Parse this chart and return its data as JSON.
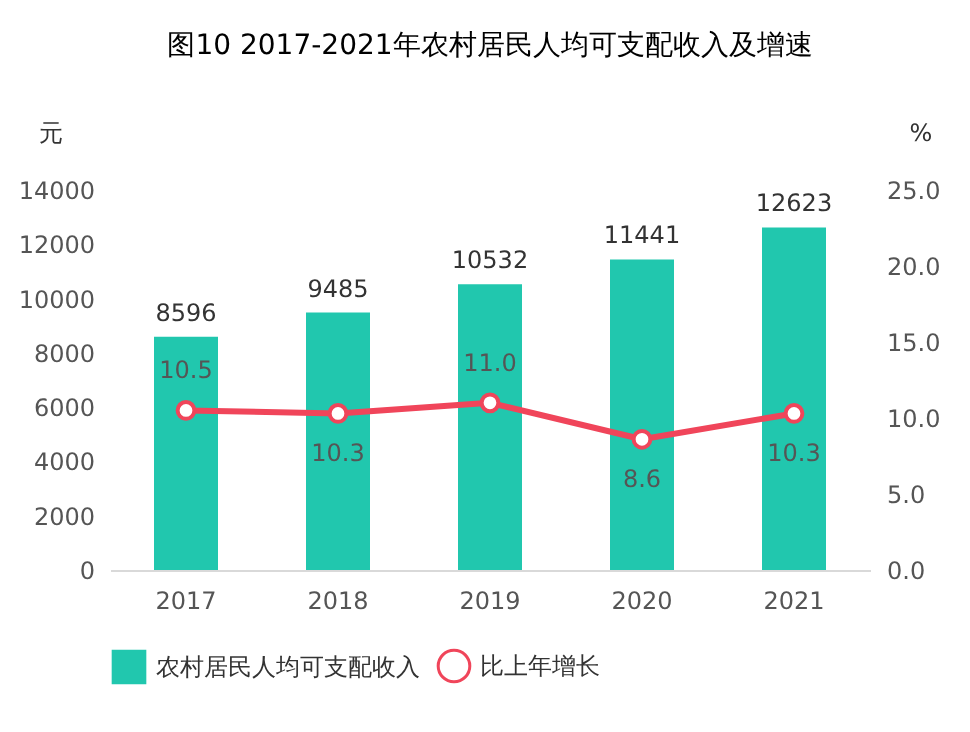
{
  "chart_data": {
    "type": "bar",
    "title": "图10   2017-2021年农村居民人均可支配收入及增速",
    "categories": [
      "2017",
      "2018",
      "2019",
      "2020",
      "2021"
    ],
    "ylabel": "元",
    "y2label": "%",
    "ylim": [
      0,
      14000
    ],
    "yticks": [
      0,
      2000,
      4000,
      6000,
      8000,
      10000,
      12000,
      14000
    ],
    "y2lim": [
      0,
      25
    ],
    "y2ticks": [
      {
        "value": 0,
        "label": "0.0"
      },
      {
        "value": 5,
        "label": "5.0"
      },
      {
        "value": 10,
        "label": "10.0"
      },
      {
        "value": 15,
        "label": "15.0"
      },
      {
        "value": 20,
        "label": "20.0"
      },
      {
        "value": 25,
        "label": "25.0"
      }
    ],
    "series": [
      {
        "name": "农村居民人均可支配收入",
        "color": "#21c7ae",
        "values": [
          8596,
          9485,
          10532,
          11441,
          12623
        ]
      },
      {
        "name": "比上年增长",
        "type": "line",
        "axis": "y2",
        "color": "#f0455a",
        "marker": "circle",
        "values": [
          10.5,
          10.3,
          11.0,
          8.6,
          10.3
        ],
        "value_labels": [
          "10.5",
          "10.3",
          "11.0",
          "8.6",
          "10.3"
        ]
      }
    ],
    "data_labels": true,
    "grid": false,
    "legend": "bottom"
  }
}
